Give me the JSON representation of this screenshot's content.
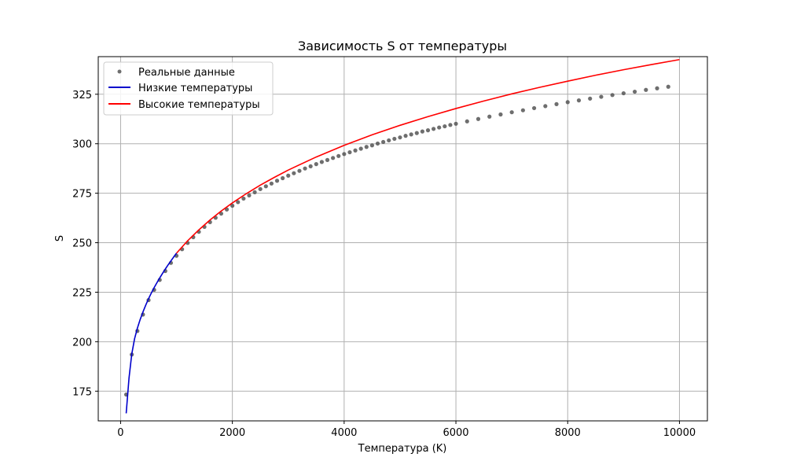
{
  "chart_data": {
    "type": "scatter",
    "title": "Зависимость S от температуры",
    "xlabel": "Температура (K)",
    "ylabel": "S",
    "xlim": [
      -400,
      10500
    ],
    "ylim": [
      160,
      344
    ],
    "xticks": [
      0,
      2000,
      4000,
      6000,
      8000,
      10000
    ],
    "yticks": [
      175,
      200,
      225,
      250,
      275,
      300,
      325
    ],
    "grid": true,
    "legend_position": "top-left",
    "series": [
      {
        "name": "Реальные данные",
        "kind": "scatter",
        "color": "#555555",
        "x": [
          100,
          200,
          300,
          400,
          500,
          600,
          700,
          800,
          900,
          1000,
          1100,
          1200,
          1300,
          1400,
          1500,
          1600,
          1700,
          1800,
          1900,
          2000,
          2100,
          2200,
          2300,
          2400,
          2500,
          2600,
          2700,
          2800,
          2900,
          3000,
          3100,
          3200,
          3300,
          3400,
          3500,
          3600,
          3700,
          3800,
          3900,
          4000,
          4100,
          4200,
          4300,
          4400,
          4500,
          4600,
          4700,
          4800,
          4900,
          5000,
          5100,
          5200,
          5300,
          5400,
          5500,
          5600,
          5700,
          5800,
          5900,
          6000,
          6200,
          6400,
          6600,
          6800,
          7000,
          7200,
          7400,
          7600,
          7800,
          8000,
          8200,
          8400,
          8600,
          8800,
          9000,
          9200,
          9400,
          9600,
          9800
        ],
        "y": [
          173.3,
          193.5,
          205.4,
          213.7,
          221.0,
          226.2,
          231.2,
          235.7,
          239.8,
          243.4,
          246.7,
          249.9,
          252.8,
          255.5,
          258.0,
          260.4,
          262.6,
          264.7,
          266.8,
          268.7,
          270.5,
          272.3,
          273.9,
          275.5,
          277.1,
          278.5,
          279.9,
          281.3,
          282.6,
          283.9,
          285.1,
          286.3,
          287.5,
          288.6,
          289.7,
          290.8,
          291.8,
          292.8,
          293.8,
          294.8,
          295.7,
          296.6,
          297.5,
          298.4,
          299.2,
          300.1,
          300.9,
          301.7,
          302.5,
          303.2,
          304.0,
          304.7,
          305.4,
          306.2,
          306.8,
          307.5,
          308.2,
          308.8,
          309.5,
          310.1,
          311.3,
          312.5,
          313.7,
          314.8,
          315.9,
          316.9,
          318.0,
          319.0,
          320.0,
          321.0,
          321.9,
          322.8,
          323.7,
          324.6,
          325.5,
          326.3,
          327.2,
          328.0,
          328.8
        ]
      },
      {
        "name": "Низкие температуры",
        "kind": "line",
        "color": "#0000cc",
        "x": [
          100,
          150,
          200,
          250,
          300,
          350,
          400,
          450,
          500,
          550,
          600,
          650,
          700,
          750,
          800,
          850,
          900,
          950,
          1000
        ],
        "y": [
          163.8,
          181.5,
          193.8,
          201.5,
          206.8,
          211.2,
          215.0,
          218.5,
          221.7,
          224.6,
          227.3,
          229.8,
          232.2,
          234.5,
          236.7,
          238.8,
          240.8,
          242.8,
          244.7
        ]
      },
      {
        "name": "Высокие температуры",
        "kind": "line",
        "color": "#ff0000",
        "x": [
          1000,
          1200,
          1400,
          1600,
          1800,
          2000,
          2250,
          2500,
          2750,
          3000,
          3500,
          4000,
          4500,
          5000,
          5500,
          6000,
          6500,
          7000,
          7500,
          8000,
          8500,
          9000,
          9500,
          10000
        ],
        "y": [
          244.7,
          251.0,
          256.5,
          261.5,
          266.0,
          270.1,
          274.8,
          279.1,
          283.0,
          286.7,
          293.3,
          299.2,
          304.5,
          309.3,
          313.7,
          317.8,
          321.6,
          325.2,
          328.5,
          331.6,
          334.6,
          337.4,
          340.0,
          342.5
        ]
      }
    ]
  }
}
